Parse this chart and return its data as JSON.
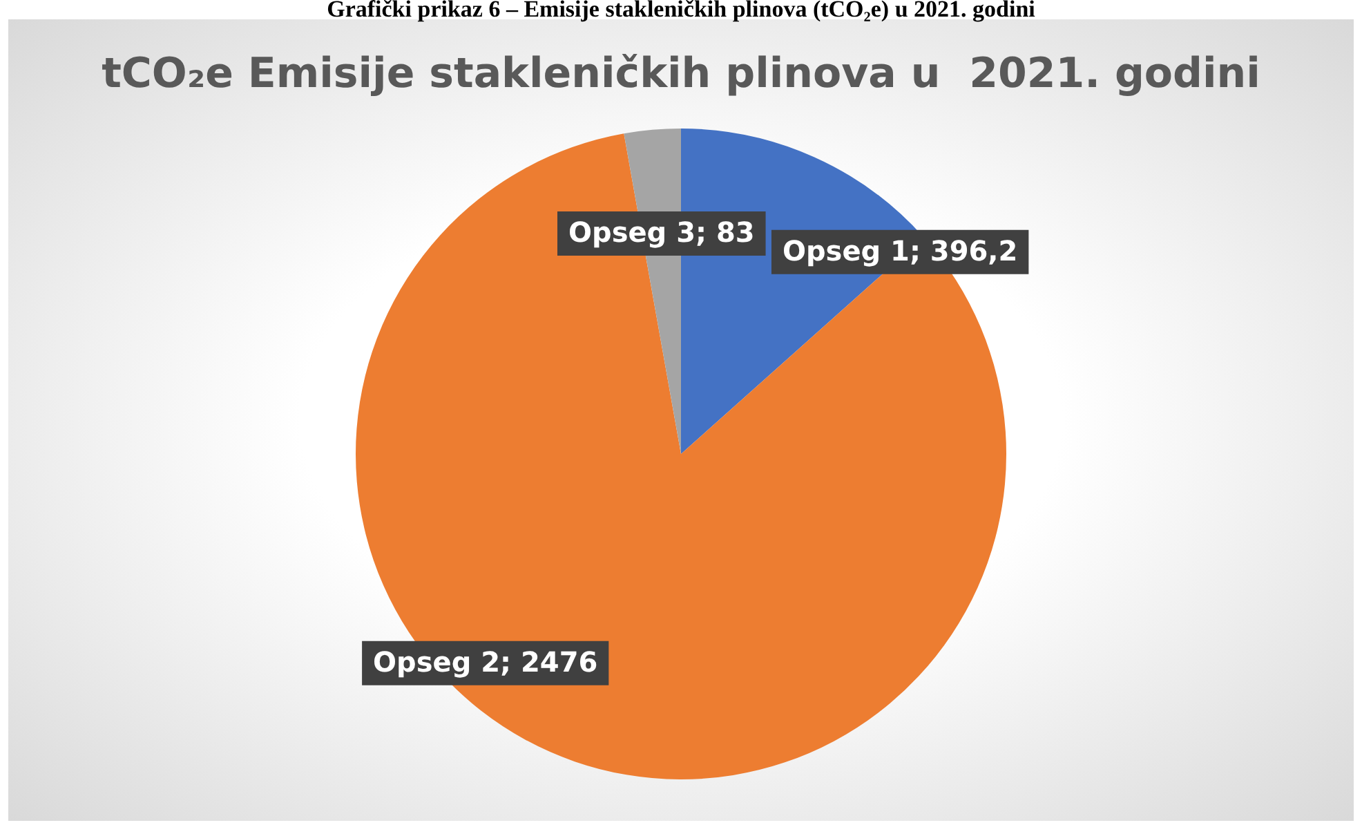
{
  "chart_data": {
    "type": "pie",
    "title": "tCO₂e Emisije stakleničkih plinova u  2021. godini",
    "annotations": [
      "Grafički prikaz 6 – Emisije stakleničkih plinova (tCO₂e) u 2021. godini"
    ],
    "categories": [
      "Opseg 1",
      "Opseg 2",
      "Opseg 3"
    ],
    "values": [
      396.2,
      2476,
      83
    ],
    "value_labels": [
      "396,2",
      "2476",
      "83"
    ],
    "colors": [
      "#4472c4",
      "#ed7d31",
      "#a5a5a5"
    ],
    "legend": false
  }
}
